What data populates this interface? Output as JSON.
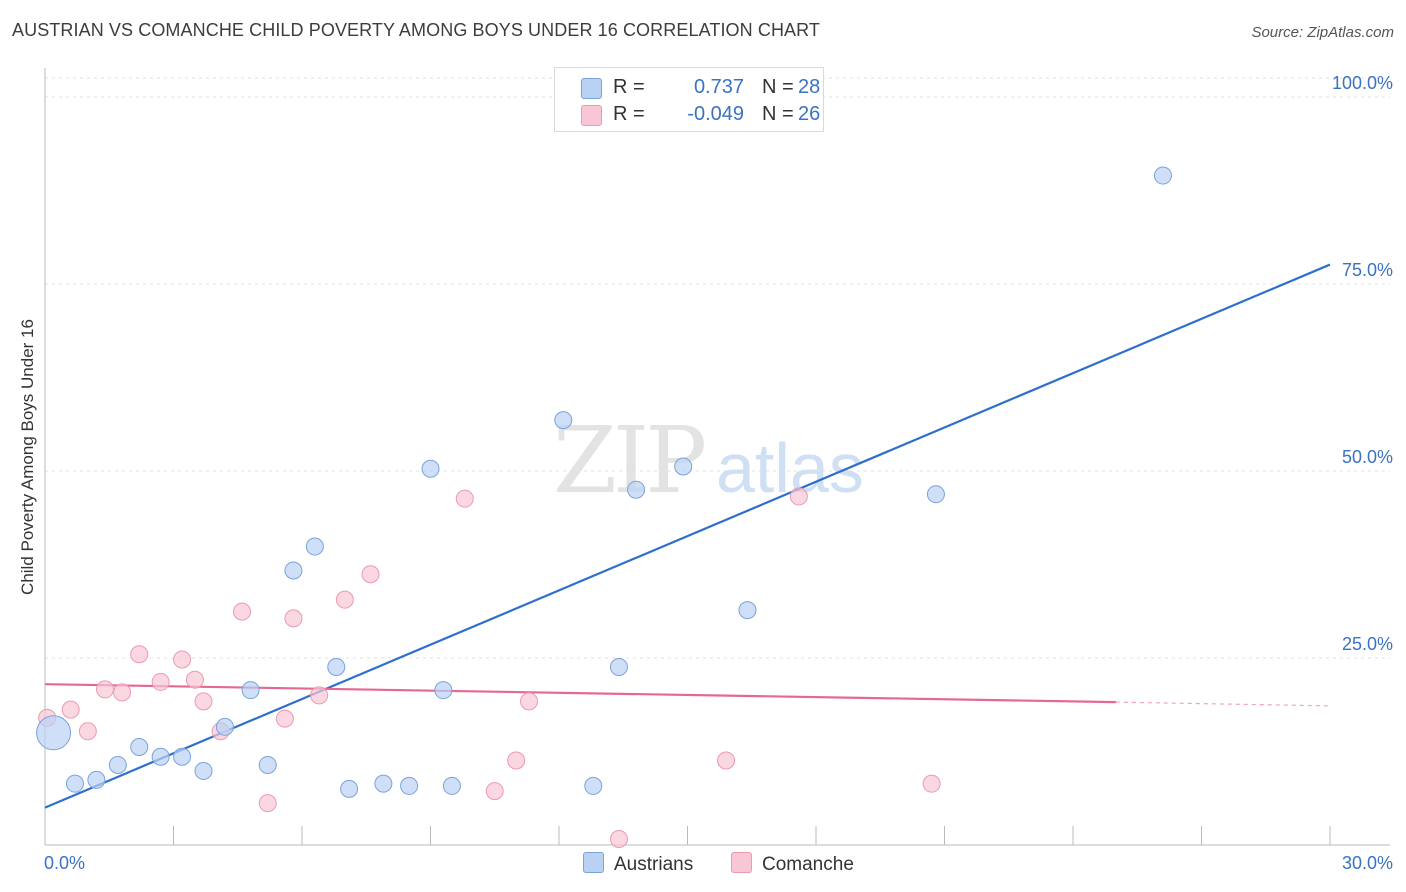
{
  "header": {
    "title": "AUSTRIAN VS COMANCHE CHILD POVERTY AMONG BOYS UNDER 16 CORRELATION CHART",
    "source": "Source: ZipAtlas.com"
  },
  "legend": {
    "rows": [
      {
        "r_label": "R =",
        "r_value": "0.737",
        "n_label": "N =",
        "n_value": "28"
      },
      {
        "r_label": "R =",
        "r_value": "-0.049",
        "n_label": "N =",
        "n_value": "26"
      }
    ],
    "bottom": [
      "Austrians",
      "Comanche"
    ]
  },
  "watermark": {
    "zip": "ZIP",
    "atlas": "atlas"
  },
  "colors": {
    "austrians_fill": "#b9d2f3",
    "austrians_stroke": "#7aa3dc",
    "austrians_line": "#2f6fcc",
    "comanche_fill": "#f8c6d4",
    "comanche_stroke": "#eb9ab2",
    "comanche_line": "#e46892",
    "tick_label": "#3a72c4",
    "grid": "#e0e0e0"
  },
  "chart_data": {
    "type": "scatter",
    "title": "AUSTRIAN VS COMANCHE CHILD POVERTY AMONG BOYS UNDER 16 CORRELATION CHART",
    "xlabel": "",
    "ylabel": "Child Poverty Among Boys Under 16",
    "xlim": [
      0,
      30
    ],
    "ylim": [
      0,
      100
    ],
    "x_tick_labels": [
      "0.0%",
      "30.0%"
    ],
    "y_ticks": [
      25,
      50,
      75,
      100
    ],
    "y_tick_labels": [
      "25.0%",
      "50.0%",
      "75.0%",
      "100.0%"
    ],
    "grid": true,
    "legend_position": "top-center",
    "series": [
      {
        "name": "Austrians",
        "points": [
          {
            "x": 0.2,
            "y": 15,
            "big": true
          },
          {
            "x": 0.7,
            "y": 8.2
          },
          {
            "x": 1.2,
            "y": 8.7
          },
          {
            "x": 1.7,
            "y": 10.7
          },
          {
            "x": 2.2,
            "y": 13.1
          },
          {
            "x": 2.7,
            "y": 11.8
          },
          {
            "x": 3.2,
            "y": 11.8
          },
          {
            "x": 3.7,
            "y": 9.9
          },
          {
            "x": 4.2,
            "y": 15.8
          },
          {
            "x": 4.8,
            "y": 20.7
          },
          {
            "x": 5.2,
            "y": 10.7
          },
          {
            "x": 5.8,
            "y": 36.7
          },
          {
            "x": 6.3,
            "y": 39.9
          },
          {
            "x": 6.8,
            "y": 23.8
          },
          {
            "x": 7.1,
            "y": 7.5
          },
          {
            "x": 7.9,
            "y": 8.2
          },
          {
            "x": 8.5,
            "y": 7.9
          },
          {
            "x": 9.0,
            "y": 50.3
          },
          {
            "x": 9.3,
            "y": 20.7
          },
          {
            "x": 9.5,
            "y": 7.9
          },
          {
            "x": 12.1,
            "y": 56.8
          },
          {
            "x": 12.8,
            "y": 7.9
          },
          {
            "x": 13.4,
            "y": 23.8
          },
          {
            "x": 13.8,
            "y": 47.5
          },
          {
            "x": 14.9,
            "y": 50.6
          },
          {
            "x": 16.4,
            "y": 31.4
          },
          {
            "x": 20.8,
            "y": 46.9
          },
          {
            "x": 26.1,
            "y": 89.5
          }
        ],
        "trend": {
          "x0": 0,
          "y0": 5,
          "x1": 30,
          "y1": 77.6
        }
      },
      {
        "name": "Comanche",
        "points": [
          {
            "x": 0.05,
            "y": 17
          },
          {
            "x": 0.6,
            "y": 18.1
          },
          {
            "x": 1.0,
            "y": 15.2
          },
          {
            "x": 1.4,
            "y": 20.8
          },
          {
            "x": 1.8,
            "y": 20.4
          },
          {
            "x": 2.2,
            "y": 25.5
          },
          {
            "x": 2.7,
            "y": 21.8
          },
          {
            "x": 3.2,
            "y": 24.8
          },
          {
            "x": 3.5,
            "y": 22.1
          },
          {
            "x": 3.7,
            "y": 19.2
          },
          {
            "x": 4.1,
            "y": 15.2
          },
          {
            "x": 4.6,
            "y": 31.2
          },
          {
            "x": 5.2,
            "y": 5.6
          },
          {
            "x": 5.6,
            "y": 16.9
          },
          {
            "x": 5.8,
            "y": 30.3
          },
          {
            "x": 6.4,
            "y": 20
          },
          {
            "x": 7.0,
            "y": 32.8
          },
          {
            "x": 7.6,
            "y": 36.2
          },
          {
            "x": 9.8,
            "y": 46.3
          },
          {
            "x": 10.5,
            "y": 7.2
          },
          {
            "x": 11.0,
            "y": 11.3
          },
          {
            "x": 11.3,
            "y": 19.2
          },
          {
            "x": 13.4,
            "y": 0.8
          },
          {
            "x": 15.9,
            "y": 11.3
          },
          {
            "x": 17.6,
            "y": 46.6
          },
          {
            "x": 20.7,
            "y": 8.2
          }
        ],
        "trend": {
          "x0": 0,
          "y0": 21.5,
          "x1": 25,
          "y1": 19.1
        },
        "trend_dashed": {
          "x0": 25,
          "y0": 19.1,
          "x1": 30,
          "y1": 18.6
        }
      }
    ]
  }
}
